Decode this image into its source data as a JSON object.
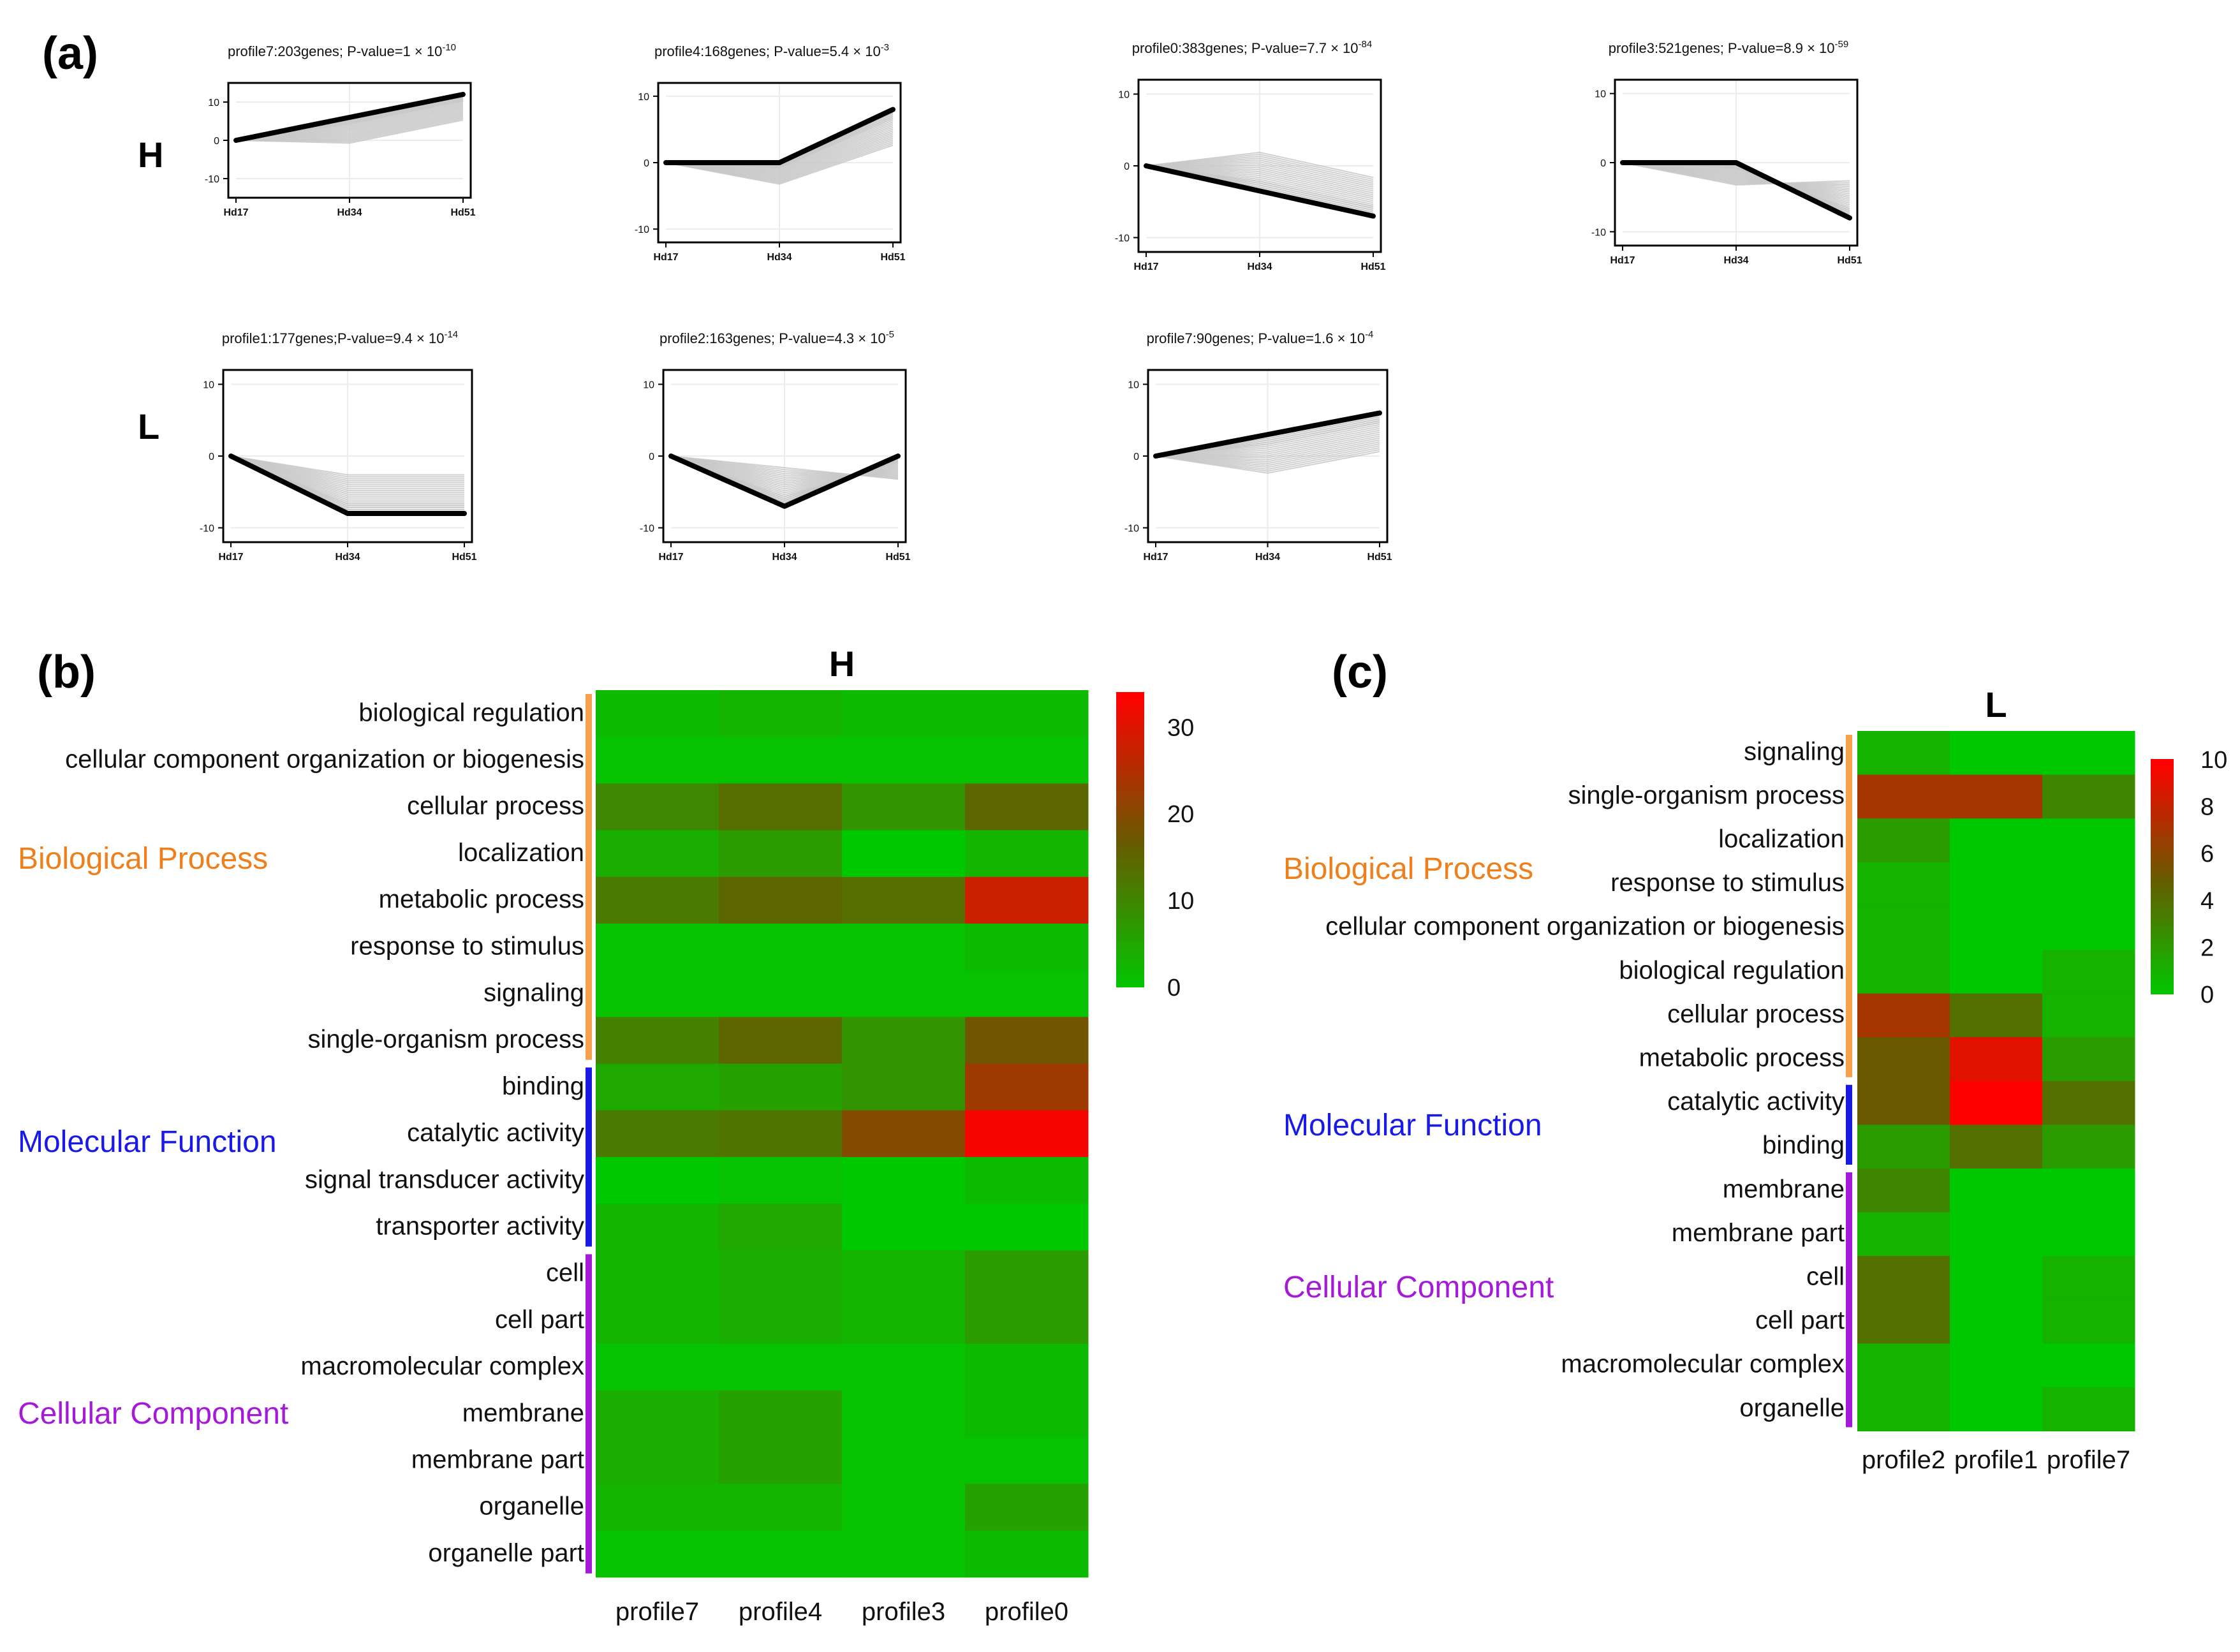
{
  "panel_labels": {
    "a": "(a)",
    "b": "(b)",
    "c": "(c)"
  },
  "row_labels": {
    "H": "H",
    "L": "L"
  },
  "colors": {
    "trend_line": "#000000",
    "gene_lines": "#c8c8c8",
    "bp": "#ee7f1b",
    "mf": "#1a1ae6",
    "cc": "#a51ad8",
    "bp_bar": "#f4a04d",
    "heat_low": "#00c800",
    "heat_mid": "#6a5a00",
    "heat_high": "#ff0000"
  },
  "chart_data": [
    {
      "type": "line",
      "id": "H-profile7",
      "row": "H",
      "title_text": "profile7:203genes; P-value=1 × 10",
      "title_exp": "-10",
      "x": [
        "Hd17",
        "Hd34",
        "Hd51"
      ],
      "y": [
        0,
        6,
        12
      ],
      "ylim": [
        -15,
        15
      ],
      "yticks": [
        10,
        0,
        -10
      ]
    },
    {
      "type": "line",
      "id": "H-profile4",
      "row": "H",
      "title_text": "profile4:168genes; P-value=5.4 × 10",
      "title_exp": "-3",
      "x": [
        "Hd17",
        "Hd34",
        "Hd51"
      ],
      "y": [
        0,
        0,
        8
      ],
      "ylim": [
        -12,
        12
      ],
      "yticks": [
        10,
        0,
        -10
      ]
    },
    {
      "type": "line",
      "id": "H-profile0",
      "row": "H",
      "title_text": "profile0:383genes; P-value=7.7 × 10",
      "title_exp": "-84",
      "x": [
        "Hd17",
        "Hd34",
        "Hd51"
      ],
      "y": [
        0,
        -3.5,
        -7
      ],
      "ylim": [
        -12,
        12
      ],
      "yticks": [
        10,
        0,
        -10
      ]
    },
    {
      "type": "line",
      "id": "H-profile3",
      "row": "H",
      "title_text": "profile3:521genes; P-value=8.9 × 10",
      "title_exp": "-59",
      "x": [
        "Hd17",
        "Hd34",
        "Hd51"
      ],
      "y": [
        0,
        0,
        -8
      ],
      "ylim": [
        -12,
        12
      ],
      "yticks": [
        10,
        0,
        -10
      ]
    },
    {
      "type": "line",
      "id": "L-profile1",
      "row": "L",
      "title_text": "profile1:177genes;P-value=9.4 × 10",
      "title_exp": "-14",
      "x": [
        "Hd17",
        "Hd34",
        "Hd51"
      ],
      "y": [
        0,
        -8,
        -8
      ],
      "ylim": [
        -12,
        12
      ],
      "yticks": [
        10,
        0,
        -10
      ]
    },
    {
      "type": "line",
      "id": "L-profile2",
      "row": "L",
      "title_text": "profile2:163genes; P-value=4.3 × 10",
      "title_exp": "-5",
      "x": [
        "Hd17",
        "Hd34",
        "Hd51"
      ],
      "y": [
        0,
        -7,
        0
      ],
      "ylim": [
        -12,
        12
      ],
      "yticks": [
        10,
        0,
        -10
      ]
    },
    {
      "type": "line",
      "id": "L-profile7",
      "row": "L",
      "title_text": "profile7:90genes; P-value=1.6 × 10",
      "title_exp": "-4",
      "x": [
        "Hd17",
        "Hd34",
        "Hd51"
      ],
      "y": [
        0,
        3,
        6
      ],
      "ylim": [
        -12,
        12
      ],
      "yticks": [
        10,
        0,
        -10
      ]
    },
    {
      "type": "heatmap",
      "id": "heatmap-H",
      "title": "H",
      "columns": [
        "profile7",
        "profile4",
        "profile3",
        "profile0"
      ],
      "rows": [
        "biological regulation",
        "cellular component organization or biogenesis",
        "cellular process",
        "localization",
        "metabolic process",
        "response to stimulus",
        "signaling",
        "single-organism process",
        "binding",
        "catalytic activity",
        "signal transducer activity",
        "transporter activity",
        "cell",
        "cell part",
        "macromolecular complex",
        "membrane",
        "membrane part",
        "organelle",
        "organelle part"
      ],
      "values": [
        [
          2,
          3,
          2,
          2
        ],
        [
          1,
          1,
          1,
          1
        ],
        [
          10,
          14,
          8,
          15
        ],
        [
          4,
          7,
          0,
          3
        ],
        [
          12,
          15,
          14,
          28
        ],
        [
          1,
          1,
          1,
          2
        ],
        [
          1,
          1,
          1,
          1
        ],
        [
          11,
          15,
          8,
          18
        ],
        [
          5,
          6,
          8,
          23
        ],
        [
          12,
          13,
          20,
          33
        ],
        [
          0,
          1,
          0,
          2
        ],
        [
          3,
          5,
          0,
          0
        ],
        [
          3,
          4,
          3,
          7
        ],
        [
          3,
          4,
          3,
          7
        ],
        [
          1,
          1,
          1,
          2
        ],
        [
          4,
          6,
          1,
          2
        ],
        [
          4,
          6,
          1,
          1
        ],
        [
          3,
          3,
          1,
          6
        ],
        [
          1,
          1,
          1,
          2
        ]
      ],
      "groups": [
        {
          "name": "Biological Process",
          "color_key": "bp",
          "bar_key": "bp_bar",
          "start": 0,
          "end": 7
        },
        {
          "name": "Molecular Function",
          "color_key": "mf",
          "bar_key": "mf",
          "start": 8,
          "end": 11
        },
        {
          "name": "Cellular Component",
          "color_key": "cc",
          "bar_key": "cc",
          "start": 12,
          "end": 18
        }
      ],
      "colorbar": {
        "min": 0,
        "max": 34,
        "ticks": [
          30,
          20,
          10,
          0
        ]
      }
    },
    {
      "type": "heatmap",
      "id": "heatmap-L",
      "title": "L",
      "columns": [
        "profile2",
        "profile1",
        "profile7"
      ],
      "rows": [
        "signaling",
        "single-organism process",
        "localization",
        "response to stimulus",
        "cellular component organization or biogenesis",
        "biological regulation",
        "cellular process",
        "metabolic process",
        "catalytic activity",
        "binding",
        "membrane",
        "membrane part",
        "cell",
        "cell part",
        "macromolecular complex",
        "organelle"
      ],
      "values": [
        [
          1,
          0,
          0
        ],
        [
          7,
          7,
          3
        ],
        [
          2,
          0,
          0
        ],
        [
          1,
          0,
          0
        ],
        [
          1,
          0,
          0
        ],
        [
          1,
          0,
          1
        ],
        [
          7,
          4,
          1
        ],
        [
          5,
          9,
          2
        ],
        [
          5,
          10,
          4
        ],
        [
          2,
          4,
          2
        ],
        [
          3,
          0,
          0
        ],
        [
          1,
          0,
          0
        ],
        [
          4,
          0,
          1
        ],
        [
          4,
          0,
          1
        ],
        [
          1,
          0,
          0
        ],
        [
          1,
          0,
          1
        ]
      ],
      "groups": [
        {
          "name": "Biological Process",
          "color_key": "bp",
          "bar_key": "bp_bar",
          "start": 0,
          "end": 7
        },
        {
          "name": "Molecular Function",
          "color_key": "mf",
          "bar_key": "mf",
          "start": 8,
          "end": 9
        },
        {
          "name": "Cellular Component",
          "color_key": "cc",
          "bar_key": "cc",
          "start": 10,
          "end": 15
        }
      ],
      "colorbar": {
        "min": 0,
        "max": 10,
        "ticks": [
          10,
          8,
          6,
          4,
          2,
          0
        ]
      }
    }
  ]
}
